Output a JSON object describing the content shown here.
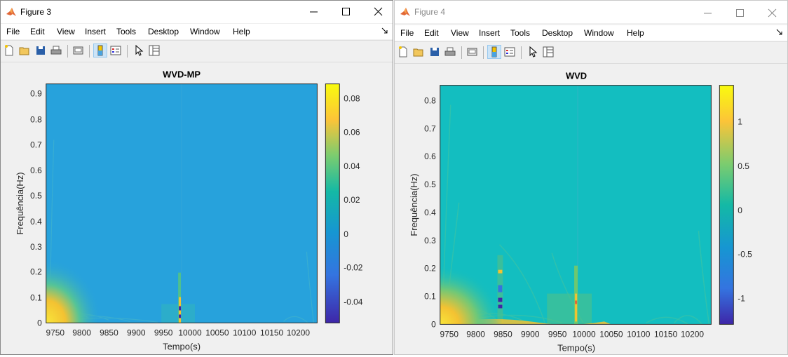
{
  "windows": [
    {
      "id": "w3",
      "title": "Figure 3",
      "menu": [
        "File",
        "Edit",
        "View",
        "Insert",
        "Tools",
        "Desktop",
        "Window",
        "Help"
      ],
      "axes": {
        "title": "WVD-MP",
        "xlabel": "Tempo(s)",
        "ylabel": "Frequência(Hz)",
        "xticks": [
          "9750",
          "9800",
          "9850",
          "9900",
          "9950",
          "10000",
          "10050",
          "10100",
          "10150",
          "10200"
        ],
        "yticks": [
          "0",
          "0.1",
          "0.2",
          "0.3",
          "0.4",
          "0.5",
          "0.6",
          "0.7",
          "0.8",
          "0.9"
        ],
        "colorbar_ticks": [
          "0.08",
          "0.06",
          "0.04",
          "0.02",
          "0",
          "-0.02",
          "-0.04"
        ]
      }
    },
    {
      "id": "w4",
      "title": "Figure 4",
      "menu": [
        "File",
        "Edit",
        "View",
        "Insert",
        "Tools",
        "Desktop",
        "Window",
        "Help"
      ],
      "axes": {
        "title": "WVD",
        "xlabel": "Tempo(s)",
        "ylabel": "Frequência(Hz)",
        "xticks": [
          "9750",
          "9800",
          "9850",
          "9900",
          "9950",
          "10000",
          "10050",
          "10100",
          "10150",
          "10200"
        ],
        "yticks": [
          "0",
          "0.1",
          "0.2",
          "0.3",
          "0.4",
          "0.5",
          "0.6",
          "0.7",
          "0.8"
        ],
        "colorbar_ticks": [
          "1",
          "0.5",
          "0",
          "-0.5",
          "-1"
        ]
      }
    }
  ],
  "chart_data": [
    {
      "type": "heatmap",
      "title": "WVD-MP",
      "xlabel": "Tempo(s)",
      "ylabel": "Frequência(Hz)",
      "xlim": [
        9740,
        10240
      ],
      "ylim": [
        0,
        0.94
      ],
      "xticks": [
        9750,
        9800,
        9850,
        9900,
        9950,
        10000,
        10050,
        10100,
        10150,
        10200
      ],
      "yticks": [
        0,
        0.1,
        0.2,
        0.3,
        0.4,
        0.5,
        0.6,
        0.7,
        0.8,
        0.9
      ],
      "colorbar": {
        "min": -0.052,
        "max": 0.088,
        "ticks": [
          0.08,
          0.06,
          0.04,
          0.02,
          0,
          -0.02,
          -0.04
        ]
      },
      "background_value": 0,
      "features": [
        {
          "name": "low-frequency energy at start",
          "t": [
            9740,
            9760
          ],
          "f": [
            0,
            0.12
          ],
          "value": 0.085
        },
        {
          "name": "transient near 9985 s",
          "t": [
            9980,
            9990
          ],
          "f": [
            0,
            0.15
          ],
          "value": -0.05
        }
      ]
    },
    {
      "type": "heatmap",
      "title": "WVD",
      "xlabel": "Tempo(s)",
      "ylabel": "Frequência(Hz)",
      "xlim": [
        9740,
        10240
      ],
      "ylim": [
        0,
        0.86
      ],
      "xticks": [
        9750,
        9800,
        9850,
        9900,
        9950,
        10000,
        10050,
        10100,
        10150,
        10200
      ],
      "yticks": [
        0,
        0.1,
        0.2,
        0.3,
        0.4,
        0.5,
        0.6,
        0.7,
        0.8
      ],
      "colorbar": {
        "min": -1.3,
        "max": 1.4,
        "ticks": [
          1,
          0.5,
          0,
          -0.5,
          -1
        ]
      },
      "background_value": 0,
      "features": [
        {
          "name": "low-frequency energy at start",
          "t": [
            9740,
            9770
          ],
          "f": [
            0,
            0.08
          ],
          "value": 1.3
        },
        {
          "name": "interference near 9850 s",
          "t": [
            9840,
            9860
          ],
          "f": [
            0.02,
            0.2
          ],
          "value": -1.1
        },
        {
          "name": "transient near 9985 s",
          "t": [
            9980,
            9990
          ],
          "f": [
            0,
            0.2
          ],
          "value": 1.0
        }
      ]
    }
  ]
}
